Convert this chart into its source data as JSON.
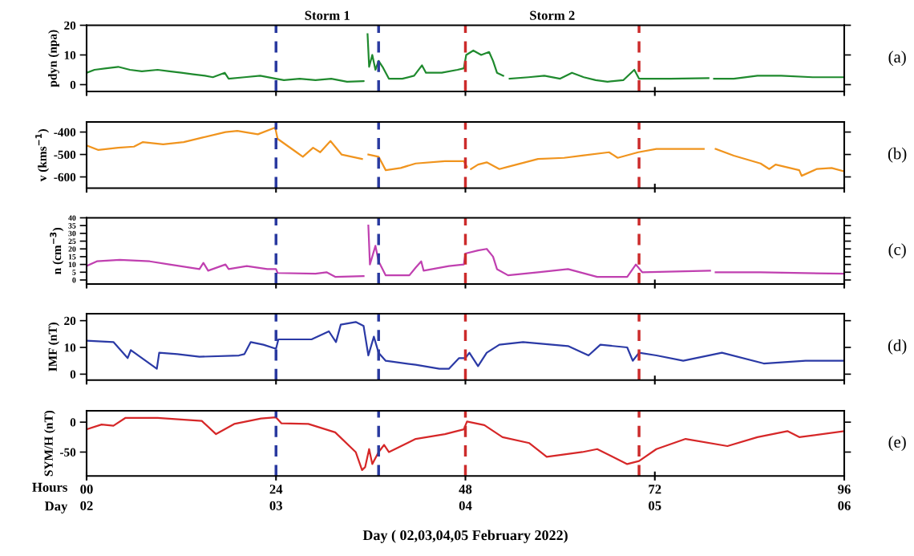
{
  "chart_data": [
    {
      "type": "line",
      "ylabel": "pdyn (npa)",
      "xlim": [
        0,
        96
      ],
      "ylim": [
        -2.3,
        20
      ],
      "yticks": [
        0,
        10,
        20
      ],
      "xticks": [
        0,
        24,
        48,
        72,
        96
      ],
      "tick_labels": "y",
      "grid": false,
      "legend": false,
      "x": [
        0,
        1,
        2.5,
        4,
        5.5,
        7,
        9,
        10.5,
        12,
        13.5,
        15,
        16,
        17.5,
        18,
        20,
        22,
        24,
        25,
        27,
        29,
        31,
        33,
        35.1,
        35.4,
        35.6,
        35.8,
        36.2,
        36.6,
        37,
        37.5,
        38.3,
        40,
        41.5,
        42.5,
        43,
        45,
        47,
        47.8,
        48.1,
        49,
        50,
        51,
        51.5,
        52,
        52.8,
        53.2,
        53.6,
        56,
        58,
        60,
        61.5,
        63,
        64.5,
        66,
        68,
        69.4,
        70,
        74,
        78.8,
        79.1,
        79.5,
        82,
        85,
        88,
        92,
        96
      ],
      "series": [
        {
          "color": "#1f8a2e",
          "values": [
            4,
            5,
            5.5,
            6,
            5,
            4.5,
            5,
            4.5,
            4,
            3.5,
            3,
            2.5,
            4,
            2,
            2.5,
            3,
            2,
            1.5,
            2,
            1.5,
            2,
            1,
            1.2,
            null,
            17,
            6,
            10,
            5,
            8,
            6,
            2,
            2,
            3,
            6.5,
            4,
            4,
            5,
            5.5,
            10,
            11.5,
            10,
            11,
            8,
            4,
            3,
            null,
            2,
            2.5,
            3,
            2,
            4,
            2.5,
            1.5,
            1,
            1.5,
            5,
            2,
            2,
            2.2,
            null,
            2,
            2,
            3,
            3,
            2.5,
            2.5
          ]
        }
      ],
      "ref_lines": [
        {
          "axis": "x",
          "value": 24,
          "color": "#2a3aa0",
          "line_style": "dashed"
        },
        {
          "axis": "x",
          "value": 37,
          "color": "#2a3aa0",
          "line_style": "dashed"
        },
        {
          "axis": "x",
          "value": 48,
          "color": "#cc2b2b",
          "line_style": "dashed"
        },
        {
          "axis": "x",
          "value": 70,
          "color": "#cc2b2b",
          "line_style": "dashed"
        }
      ],
      "annotations": [
        "Storm 1",
        "Storm 2",
        "(a)"
      ]
    },
    {
      "type": "line",
      "ylabel": "v (kms$^{−1}$)",
      "xlim": [
        0,
        96
      ],
      "ylim": [
        -650,
        -355
      ],
      "yticks": [
        -400,
        -500,
        -600
      ],
      "xticks": [
        0,
        24,
        48,
        72,
        96
      ],
      "tick_labels": "y",
      "grid": false,
      "legend": false,
      "x": [
        0,
        1.5,
        4,
        6,
        7.1,
        9.7,
        12.3,
        14.6,
        17.6,
        19.1,
        21.7,
        23.9,
        24.2,
        26.6,
        27.4,
        28.7,
        29.6,
        30.9,
        32.3,
        34.9,
        35.3,
        35.7,
        37,
        37.9,
        39.8,
        41.7,
        45.4,
        47.8,
        48.2,
        48.5,
        48.7,
        49.6,
        50.7,
        52.3,
        53.4,
        57.2,
        60.5,
        62.8,
        66.2,
        67.3,
        69.9,
        72.2,
        75.9,
        78.2,
        78.9,
        79.7,
        82,
        85.4,
        86.5,
        87.3,
        90.3,
        90.6,
        92.5,
        94.4,
        96
      ],
      "series": [
        {
          "color": "#f0941e",
          "values": [
            -460,
            -480,
            -470,
            -465,
            -445,
            -455,
            -445,
            -425,
            -400,
            -395,
            -410,
            -380,
            -430,
            -490,
            -510,
            -470,
            -490,
            -440,
            -500,
            -520,
            null,
            -500,
            -510,
            -570,
            -560,
            -540,
            -530,
            -530,
            -555,
            null,
            -565,
            -545,
            -535,
            -565,
            -555,
            -520,
            -515,
            -505,
            -490,
            -515,
            -490,
            -475,
            -475,
            -475,
            null,
            -475,
            -505,
            -540,
            -565,
            -545,
            -570,
            -595,
            -565,
            -560,
            -575
          ]
        }
      ],
      "ref_lines": [
        {
          "axis": "x",
          "value": 24,
          "color": "#2a3aa0",
          "line_style": "dashed"
        },
        {
          "axis": "x",
          "value": 37,
          "color": "#2a3aa0",
          "line_style": "dashed"
        },
        {
          "axis": "x",
          "value": 48,
          "color": "#cc2b2b",
          "line_style": "dashed"
        },
        {
          "axis": "x",
          "value": 70,
          "color": "#cc2b2b",
          "line_style": "dashed"
        }
      ],
      "annotations": [
        "(b)"
      ]
    },
    {
      "type": "line",
      "ylabel": "n (cm$^{−3}$)",
      "xlim": [
        0,
        96
      ],
      "ylim": [
        -2.6,
        40
      ],
      "yticks": [
        0,
        5,
        10,
        15,
        20,
        25,
        30,
        35,
        40
      ],
      "xticks": [
        0,
        24,
        48,
        72,
        96
      ],
      "tick_labels": "y",
      "grid": false,
      "legend": false,
      "x": [
        0,
        1.3,
        4.2,
        8,
        10.5,
        14.3,
        14.8,
        15.4,
        17.6,
        18,
        20.3,
        22.9,
        24,
        24.2,
        29,
        30.4,
        31.5,
        35.1,
        35.4,
        35.7,
        35.9,
        36.6,
        37,
        37.9,
        40.9,
        41.7,
        42.4,
        42.7,
        45.9,
        47.8,
        48,
        49.6,
        50.7,
        51.5,
        52,
        53.4,
        57.2,
        61,
        64.7,
        68.5,
        69.6,
        70.4,
        79,
        79.3,
        79.7,
        85.4,
        96
      ],
      "series": [
        {
          "color": "#c040b0",
          "values": [
            9,
            12,
            13,
            12,
            10,
            7,
            11,
            6,
            10,
            7,
            9,
            7,
            7,
            4.5,
            4,
            5,
            2,
            2.5,
            null,
            35,
            10,
            22,
            12,
            3,
            3,
            8,
            12,
            6,
            9,
            10,
            17,
            19,
            20,
            15,
            7,
            3,
            5,
            7,
            2,
            2,
            10,
            5,
            6,
            null,
            5,
            5,
            4
          ]
        }
      ],
      "ref_lines": [
        {
          "axis": "x",
          "value": 24,
          "color": "#2a3aa0",
          "line_style": "dashed"
        },
        {
          "axis": "x",
          "value": 37,
          "color": "#2a3aa0",
          "line_style": "dashed"
        },
        {
          "axis": "x",
          "value": 48,
          "color": "#cc2b2b",
          "line_style": "dashed"
        },
        {
          "axis": "x",
          "value": 70,
          "color": "#cc2b2b",
          "line_style": "dashed"
        }
      ],
      "annotations": [
        "(c)"
      ]
    },
    {
      "type": "line",
      "ylabel": "IMF (nT)",
      "xlim": [
        0,
        96
      ],
      "ylim": [
        -2.2,
        22.6
      ],
      "yticks": [
        0,
        10,
        20
      ],
      "xticks": [
        0,
        24,
        48,
        72,
        96
      ],
      "tick_labels": "y",
      "grid": false,
      "legend": false,
      "x": [
        0,
        3.4,
        5.2,
        5.6,
        8.9,
        9.2,
        11.5,
        14.3,
        19.3,
        20,
        20.8,
        22.4,
        24,
        24.3,
        28.5,
        30.7,
        31.6,
        32.2,
        34.1,
        35.1,
        35.7,
        36.4,
        37,
        37.9,
        41.7,
        44.7,
        45.9,
        47.2,
        48,
        48.5,
        49.6,
        50.7,
        52.3,
        55.3,
        61,
        63.6,
        65.1,
        68.5,
        69.2,
        70,
        72.2,
        75.6,
        80.5,
        85.8,
        91.1,
        96
      ],
      "series": [
        {
          "color": "#2b3aa6",
          "values": [
            12.5,
            12,
            6,
            9,
            2,
            8,
            7.5,
            6.5,
            7,
            7.5,
            12,
            11,
            9.5,
            13,
            13,
            16,
            12,
            18.5,
            19.5,
            18,
            7,
            14,
            8,
            5,
            3.5,
            2,
            2,
            6,
            6,
            8,
            3,
            8,
            11,
            12,
            10.5,
            7,
            11,
            10,
            5,
            8,
            7,
            5,
            8,
            4,
            5,
            5
          ]
        }
      ],
      "ref_lines": [
        {
          "axis": "x",
          "value": 24,
          "color": "#2a3aa0",
          "line_style": "dashed"
        },
        {
          "axis": "x",
          "value": 37,
          "color": "#2a3aa0",
          "line_style": "dashed"
        },
        {
          "axis": "x",
          "value": 48,
          "color": "#cc2b2b",
          "line_style": "dashed"
        },
        {
          "axis": "x",
          "value": 70,
          "color": "#cc2b2b",
          "line_style": "dashed"
        }
      ],
      "annotations": [
        "(d)"
      ]
    },
    {
      "type": "line",
      "ylabel": "SYM/H (nT)",
      "xlabel": "Day ( 02,03,04,05 February 2022)",
      "xlim": [
        0,
        96
      ],
      "ylim": [
        -90,
        19
      ],
      "yticks": [
        0,
        -50
      ],
      "xticks": [
        {
          "value": 0,
          "label": "00"
        },
        24,
        48,
        72,
        96
      ],
      "x2lim": [
        2,
        6
      ],
      "x2ticks": [
        {
          "value": 2,
          "label": "02"
        },
        {
          "value": 3,
          "label": "03"
        },
        {
          "value": 4,
          "label": "04"
        },
        {
          "value": 5,
          "label": "05"
        },
        {
          "value": 6,
          "label": "06"
        }
      ],
      "grid": false,
      "legend": false,
      "x": [
        0,
        1.9,
        3.4,
        4.9,
        9,
        14.6,
        16.4,
        18.7,
        22.1,
        24,
        24.7,
        28.1,
        31.5,
        34.1,
        34.9,
        35.3,
        35.8,
        36.2,
        37,
        37.7,
        38.3,
        41.7,
        45.4,
        47.8,
        48.2,
        50.4,
        52.7,
        56.1,
        58.3,
        62.8,
        64.7,
        68.5,
        70,
        72.2,
        75.9,
        81.2,
        85,
        88.8,
        90.3,
        96
      ],
      "series": [
        {
          "color": "#d62728",
          "values": [
            -12,
            -4,
            -6,
            7,
            7,
            2,
            -20,
            -3,
            6,
            8,
            -2,
            -3,
            -17,
            -50,
            -80,
            -75,
            -45,
            -70,
            -50,
            -38,
            -50,
            -28,
            -20,
            -12,
            1,
            -5,
            -25,
            -35,
            -58,
            -50,
            -45,
            -70,
            -65,
            -45,
            -28,
            -40,
            -25,
            -15,
            -25,
            -15
          ]
        }
      ],
      "ref_lines": [
        {
          "axis": "x",
          "value": 24,
          "color": "#2a3aa0",
          "line_style": "dashed"
        },
        {
          "axis": "x",
          "value": 37,
          "color": "#2a3aa0",
          "line_style": "dashed"
        },
        {
          "axis": "x",
          "value": 48,
          "color": "#cc2b2b",
          "line_style": "dashed"
        },
        {
          "axis": "x",
          "value": 70,
          "color": "#cc2b2b",
          "line_style": "dashed"
        }
      ],
      "annotations": [
        "Hours",
        "Day",
        "(e)"
      ]
    }
  ]
}
